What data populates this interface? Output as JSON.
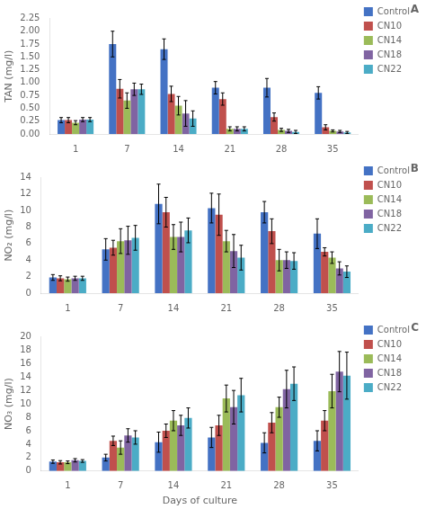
{
  "chart_data": [
    {
      "type": "bar",
      "title": "A",
      "ylabel": "TAN (mg/l)",
      "categories": [
        1,
        7,
        14,
        21,
        28,
        35
      ],
      "series": [
        {
          "name": "Control",
          "color": "#4472C4",
          "values": [
            0.27,
            1.75,
            1.65,
            0.9,
            0.9,
            0.8
          ],
          "errors": [
            0.05,
            0.25,
            0.2,
            0.12,
            0.18,
            0.12
          ]
        },
        {
          "name": "CN10",
          "color": "#C0504D",
          "values": [
            0.27,
            0.88,
            0.78,
            0.68,
            0.33,
            0.13
          ],
          "errors": [
            0.05,
            0.18,
            0.15,
            0.12,
            0.08,
            0.05
          ]
        },
        {
          "name": "CN14",
          "color": "#9BBB59",
          "values": [
            0.22,
            0.65,
            0.55,
            0.1,
            0.08,
            0.06
          ],
          "errors": [
            0.04,
            0.15,
            0.18,
            0.04,
            0.03,
            0.02
          ]
        },
        {
          "name": "CN18",
          "color": "#8064A2",
          "values": [
            0.28,
            0.87,
            0.4,
            0.1,
            0.06,
            0.05
          ],
          "errors": [
            0.04,
            0.12,
            0.25,
            0.04,
            0.03,
            0.02
          ]
        },
        {
          "name": "CN22",
          "color": "#4BACC6",
          "values": [
            0.28,
            0.87,
            0.3,
            0.1,
            0.04,
            0.03
          ],
          "errors": [
            0.04,
            0.1,
            0.15,
            0.04,
            0.03,
            0.02
          ]
        }
      ],
      "ylim": [
        0,
        2.25
      ],
      "yticks": [
        {
          "value": 0,
          "label": "0.00"
        },
        0.25,
        {
          "value": 0.5,
          "label": "0.50"
        },
        0.75,
        {
          "value": 1.0,
          "label": "1.00"
        },
        1.25,
        {
          "value": 1.5,
          "label": "1.50"
        },
        1.75,
        {
          "value": 2.0,
          "label": "2.00"
        },
        2.25
      ],
      "grid": false,
      "legend": "right"
    },
    {
      "type": "bar",
      "title": "B",
      "ylabel": "NO₂ (mg/l)",
      "categories": [
        1,
        7,
        14,
        21,
        28,
        35
      ],
      "series": [
        {
          "name": "Control",
          "color": "#4472C4",
          "values": [
            1.9,
            5.3,
            10.8,
            10.3,
            9.8,
            7.2
          ],
          "errors": [
            0.35,
            1.3,
            2.4,
            1.8,
            1.3,
            1.8
          ]
        },
        {
          "name": "CN10",
          "color": "#C0504D",
          "values": [
            1.8,
            5.5,
            9.8,
            9.5,
            7.5,
            5.0
          ],
          "errors": [
            0.3,
            0.9,
            1.8,
            2.5,
            1.5,
            0.5
          ]
        },
        {
          "name": "CN14",
          "color": "#9BBB59",
          "values": [
            1.7,
            6.3,
            6.8,
            6.3,
            4.0,
            4.3
          ],
          "errors": [
            0.25,
            1.5,
            1.5,
            1.3,
            1.3,
            0.7
          ]
        },
        {
          "name": "CN18",
          "color": "#8064A2",
          "values": [
            1.8,
            6.4,
            6.8,
            5.1,
            4.0,
            3.0
          ],
          "errors": [
            0.25,
            1.7,
            1.8,
            2.0,
            1.0,
            0.8
          ]
        },
        {
          "name": "CN22",
          "color": "#4BACC6",
          "values": [
            1.8,
            6.7,
            7.6,
            4.3,
            3.9,
            2.6
          ],
          "errors": [
            0.25,
            1.5,
            1.5,
            1.5,
            1.0,
            0.7
          ]
        }
      ],
      "ylim": [
        0,
        14
      ],
      "yticks": [
        0,
        2,
        4,
        6,
        8,
        10,
        12,
        14
      ],
      "grid": false,
      "legend": "right"
    },
    {
      "type": "bar",
      "title": "C",
      "ylabel": "NO₃ (mg/l)",
      "xlabel": "Days of culture",
      "categories": [
        1,
        7,
        14,
        21,
        28,
        35
      ],
      "series": [
        {
          "name": "Control",
          "color": "#4472C4",
          "values": [
            1.4,
            2.0,
            4.3,
            5.0,
            4.2,
            4.5
          ],
          "errors": [
            0.25,
            0.5,
            1.5,
            1.5,
            1.5,
            1.5
          ]
        },
        {
          "name": "CN10",
          "color": "#C0504D",
          "values": [
            1.3,
            4.5,
            6.0,
            6.8,
            7.2,
            7.5
          ],
          "errors": [
            0.25,
            0.7,
            1.0,
            1.5,
            1.5,
            1.5
          ]
        },
        {
          "name": "CN14",
          "color": "#9BBB59",
          "values": [
            1.3,
            3.5,
            7.5,
            10.8,
            9.5,
            11.9
          ],
          "errors": [
            0.2,
            1.0,
            1.5,
            2.0,
            1.5,
            2.5
          ]
        },
        {
          "name": "CN18",
          "color": "#8064A2",
          "values": [
            1.6,
            5.3,
            6.8,
            9.5,
            12.2,
            14.8
          ],
          "errors": [
            0.25,
            1.0,
            1.5,
            2.5,
            2.8,
            3.0
          ]
        },
        {
          "name": "CN22",
          "color": "#4BACC6",
          "values": [
            1.5,
            5.0,
            7.9,
            11.3,
            13.0,
            14.2
          ],
          "errors": [
            0.2,
            1.0,
            1.5,
            2.5,
            2.5,
            3.5
          ]
        }
      ],
      "ylim": [
        0,
        20
      ],
      "yticks": [
        0,
        2,
        4,
        6,
        8,
        10,
        12,
        14,
        16,
        18,
        20
      ],
      "grid": false,
      "legend": "right"
    }
  ]
}
